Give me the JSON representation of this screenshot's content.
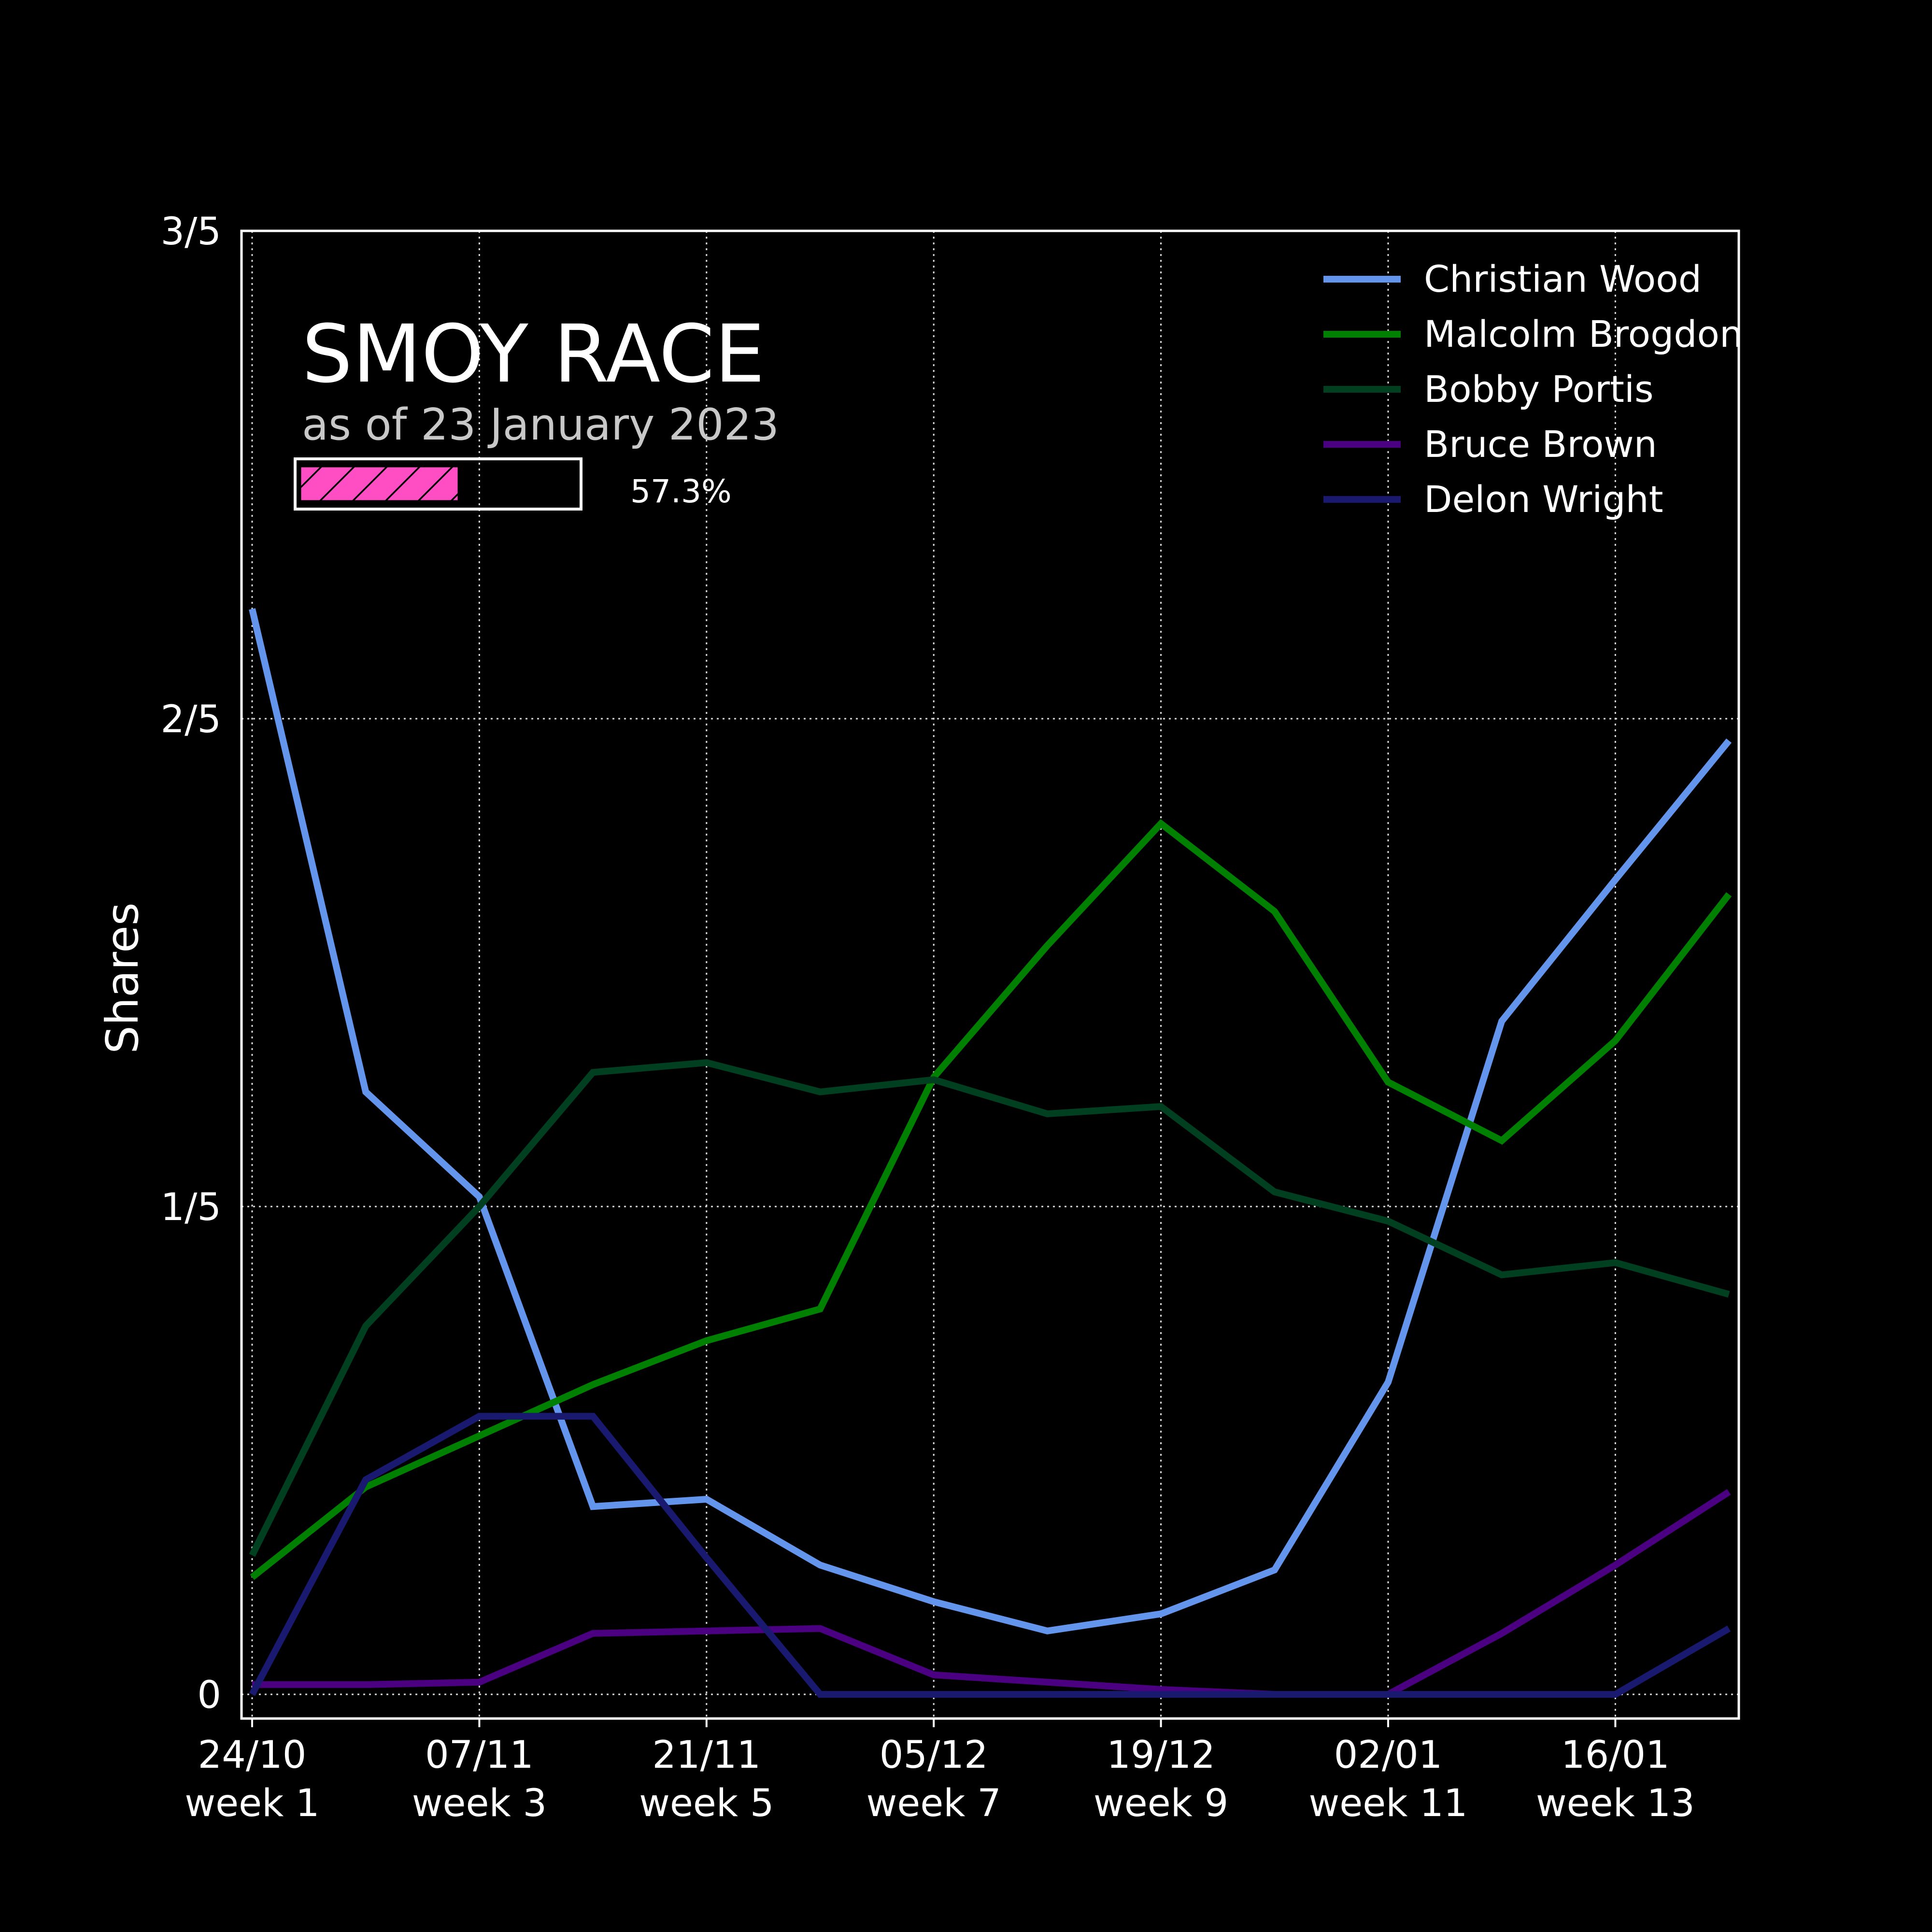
{
  "chart_data": {
    "type": "line",
    "title": "SMOY RACE",
    "subtitle": "as of 23 January 2023",
    "progress": {
      "value": 0.573,
      "label": "57.3%",
      "color": "#ff4dc4"
    },
    "ylabel": "Shares",
    "xlabel": "",
    "ylim": [
      0,
      0.6
    ],
    "yticks": [
      {
        "value": 0,
        "label": "0"
      },
      {
        "value": 0.2,
        "label": "1/5"
      },
      {
        "value": 0.4,
        "label": "2/5"
      },
      {
        "value": 0.6,
        "label": "3/5"
      }
    ],
    "x_weeks": [
      1,
      2,
      3,
      4,
      5,
      6,
      7,
      8,
      9,
      10,
      11,
      12,
      13,
      14
    ],
    "xticks": [
      {
        "week": 1,
        "date": "24/10",
        "label": "week 1"
      },
      {
        "week": 3,
        "date": "07/11",
        "label": "week 3"
      },
      {
        "week": 5,
        "date": "21/11",
        "label": "week 5"
      },
      {
        "week": 7,
        "date": "05/12",
        "label": "week 7"
      },
      {
        "week": 9,
        "date": "19/12",
        "label": "week 9"
      },
      {
        "week": 11,
        "date": "02/01",
        "label": "week 11"
      },
      {
        "week": 13,
        "date": "16/01",
        "label": "week 13"
      }
    ],
    "grid": true,
    "legend_position": "top-right",
    "series": [
      {
        "name": "Christian Wood",
        "color": "#6495ed",
        "values": [
          0.445,
          0.247,
          0.204,
          0.077,
          0.08,
          0.053,
          0.038,
          0.026,
          0.033,
          0.051,
          0.128,
          0.276,
          0.334,
          0.391
        ]
      },
      {
        "name": "Malcolm Brogdon",
        "color": "#008000",
        "values": [
          0.048,
          0.085,
          0.106,
          0.127,
          0.145,
          0.158,
          0.253,
          0.307,
          0.357,
          0.321,
          0.251,
          0.227,
          0.268,
          0.328
        ]
      },
      {
        "name": "Bobby Portis",
        "color": "#004020",
        "values": [
          0.057,
          0.151,
          0.2,
          0.255,
          0.259,
          0.247,
          0.252,
          0.238,
          0.241,
          0.206,
          0.194,
          0.172,
          0.177,
          0.164
        ]
      },
      {
        "name": "Bruce Brown",
        "color": "#4b0082",
        "values": [
          0.004,
          0.004,
          0.005,
          0.025,
          0.026,
          0.027,
          0.008,
          0.005,
          0.002,
          0.0,
          0.0,
          0.025,
          0.053,
          0.083
        ]
      },
      {
        "name": "Delon Wright",
        "color": "#191970",
        "values": [
          0.0,
          0.088,
          0.114,
          0.114,
          0.056,
          0.0,
          0.0,
          0.0,
          0.0,
          0.0,
          0.0,
          0.0,
          0.0,
          0.027
        ]
      }
    ]
  }
}
